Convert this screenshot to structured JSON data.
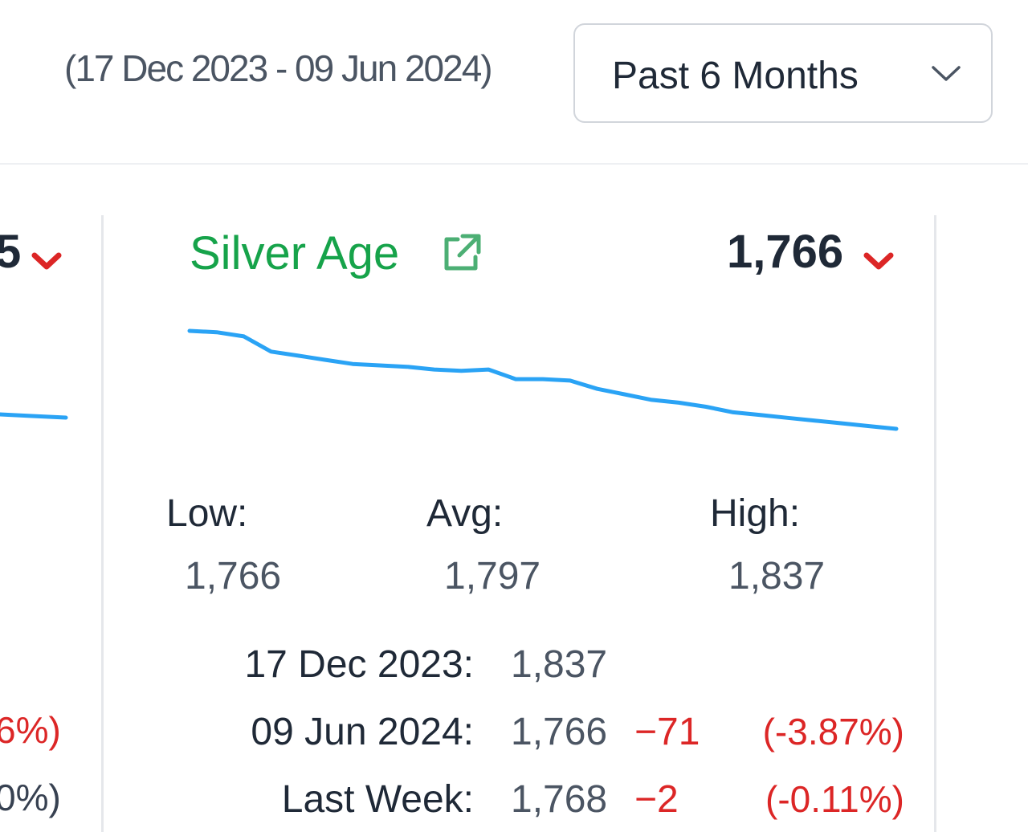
{
  "header": {
    "date_range": "(17 Dec 2023 - 09 Jun 2024)",
    "period_select": {
      "selected": "Past 6 Months",
      "icon": "chevron-down-icon"
    }
  },
  "previous_card": {
    "value_fragment": "5",
    "trend_icon": "down-arrow-icon",
    "pct_fragment_1": "6%)",
    "pct_fragment_2": "0%)"
  },
  "card": {
    "title": "Silver Age",
    "title_icon": "external-link-icon",
    "value": "1,766",
    "trend_icon": "down-arrow-icon",
    "stats": {
      "low_label": "Low:",
      "low_value": "1,766",
      "avg_label": "Avg:",
      "avg_value": "1,797",
      "high_label": "High:",
      "high_value": "1,837"
    },
    "rows": [
      {
        "label": "17 Dec 2023:",
        "value": "1,837",
        "change": "",
        "pct": ""
      },
      {
        "label": "09 Jun 2024:",
        "value": "1,766",
        "change": "−71",
        "pct": "(-3.87%)"
      },
      {
        "label": "Last Week:",
        "value": "1,768",
        "change": "−2",
        "pct": "(-0.11%)"
      }
    ]
  },
  "colors": {
    "title": "#16a34a",
    "line": "#2aa3f5",
    "negative": "#dc2626",
    "text": "#1f2937",
    "muted": "#4b5563"
  },
  "chart_data": {
    "type": "line",
    "series": [
      {
        "values": [
          1837,
          1836,
          1833,
          1822,
          1819,
          1816,
          1813,
          1812,
          1811,
          1809,
          1808,
          1809,
          1802,
          1802,
          1801,
          1795,
          1791,
          1787,
          1785,
          1782,
          1778,
          1776,
          1774,
          1772,
          1770,
          1768,
          1766
        ]
      }
    ],
    "ylim": [
      1766,
      1837
    ]
  }
}
